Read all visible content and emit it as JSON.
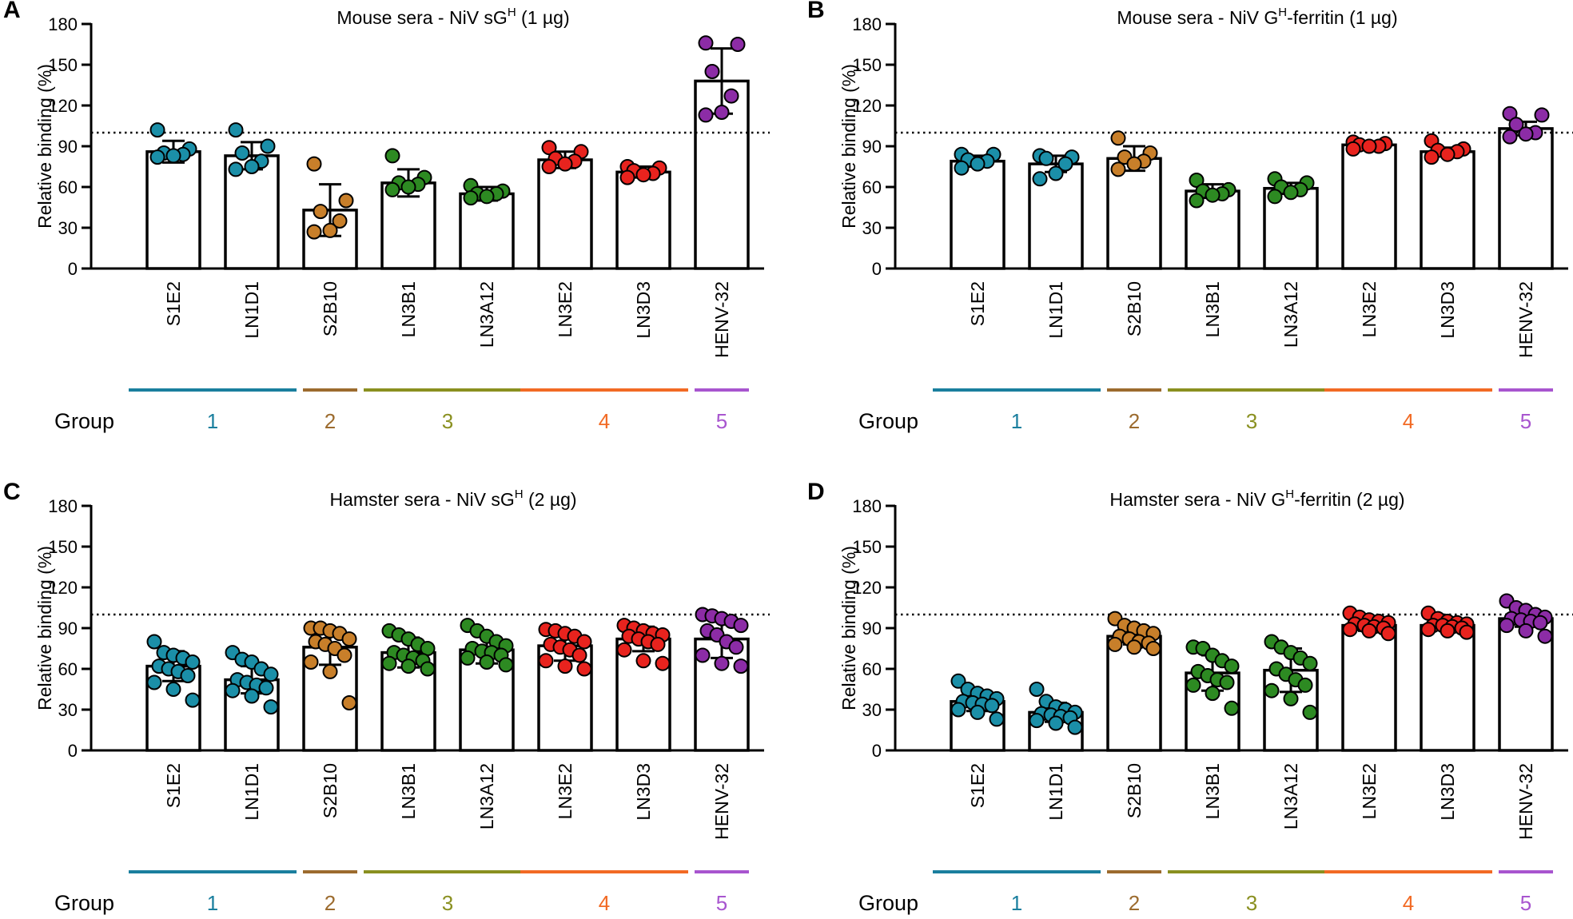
{
  "chart_data": [
    {
      "type": "bar",
      "panel_label": "A",
      "title": "Mouse sera - NiV sG",
      "title_sup": "H",
      "title_after": " (1 µg)",
      "ylabel": "Relative binding (%)",
      "ylim": [
        0,
        180
      ],
      "yticks": [
        "0",
        "30",
        "60",
        "90",
        "120",
        "150",
        "180"
      ],
      "reference_line": 100,
      "categories": [
        "S1E2",
        "LN1D1",
        "S2B10",
        "LN3B1",
        "LN3A12",
        "LN3E2",
        "LN3D3",
        "HENV-32"
      ],
      "values": [
        86,
        83,
        43,
        63,
        55,
        80,
        71,
        138
      ],
      "errors": [
        8,
        10,
        19,
        10,
        5,
        6,
        4,
        24
      ],
      "points": [
        [
          102,
          88,
          85,
          84,
          83,
          82
        ],
        [
          102,
          90,
          85,
          79,
          75,
          73
        ],
        [
          77,
          50,
          42,
          35,
          28,
          27
        ],
        [
          83,
          67,
          63,
          62,
          60,
          58
        ],
        [
          61,
          57,
          55,
          55,
          53,
          52
        ],
        [
          89,
          86,
          81,
          79,
          77,
          75
        ],
        [
          75,
          74,
          72,
          70,
          69,
          67
        ],
        [
          166,
          165,
          145,
          127,
          115,
          113
        ]
      ],
      "group_label": "Group",
      "groups": [
        {
          "label": "1",
          "color": "#1a7f9e",
          "start": 0,
          "end": 1
        },
        {
          "label": "2",
          "color": "#9c6b2e",
          "start": 2,
          "end": 2
        },
        {
          "label": "3",
          "color": "#8a9020",
          "start": 3,
          "end": 4
        },
        {
          "label": "4",
          "color": "#f26a24",
          "start": 5,
          "end": 6
        },
        {
          "label": "5",
          "color": "#a855cf",
          "start": 7,
          "end": 7
        }
      ],
      "point_colors": [
        "#1b8fa8",
        "#1b8fa8",
        "#c87f2a",
        "#2d8a22",
        "#2d8a22",
        "#e8231e",
        "#e8231e",
        "#8c2ca6"
      ]
    },
    {
      "type": "bar",
      "panel_label": "B",
      "title": "Mouse sera - NiV G",
      "title_sup": "H",
      "title_after": "-ferritin (1 µg)",
      "ylabel": "Relative binding (%)",
      "ylim": [
        0,
        180
      ],
      "yticks": [
        "0",
        "30",
        "60",
        "90",
        "120",
        "150",
        "180"
      ],
      "reference_line": 100,
      "categories": [
        "S1E2",
        "LN1D1",
        "S2B10",
        "LN3B1",
        "LN3A12",
        "LN3E2",
        "LN3D3",
        "HENV-32"
      ],
      "values": [
        79,
        77,
        81,
        57,
        59,
        91,
        86,
        103
      ],
      "errors": [
        4,
        6,
        9,
        5,
        4,
        2,
        3,
        5
      ],
      "points": [
        [
          84,
          84,
          80,
          79,
          77,
          74
        ],
        [
          83,
          82,
          81,
          77,
          70,
          66
        ],
        [
          96,
          85,
          82,
          79,
          77,
          73
        ],
        [
          65,
          58,
          57,
          55,
          54,
          50
        ],
        [
          66,
          63,
          60,
          58,
          56,
          53
        ],
        [
          93,
          92,
          91,
          90,
          90,
          88
        ],
        [
          94,
          88,
          87,
          86,
          84,
          82
        ],
        [
          114,
          113,
          106,
          100,
          99,
          97
        ]
      ],
      "group_label": "Group",
      "groups": [
        {
          "label": "1",
          "color": "#1a7f9e",
          "start": 0,
          "end": 1
        },
        {
          "label": "2",
          "color": "#9c6b2e",
          "start": 2,
          "end": 2
        },
        {
          "label": "3",
          "color": "#8a9020",
          "start": 3,
          "end": 4
        },
        {
          "label": "4",
          "color": "#f26a24",
          "start": 5,
          "end": 6
        },
        {
          "label": "5",
          "color": "#a855cf",
          "start": 7,
          "end": 7
        }
      ],
      "point_colors": [
        "#1b8fa8",
        "#1b8fa8",
        "#c87f2a",
        "#2d8a22",
        "#2d8a22",
        "#e8231e",
        "#e8231e",
        "#8c2ca6"
      ]
    },
    {
      "type": "bar",
      "panel_label": "C",
      "title": "Hamster sera - NiV sG",
      "title_sup": "H",
      "title_after": " (2 µg)",
      "ylabel": "Relative binding (%)",
      "ylim": [
        0,
        180
      ],
      "yticks": [
        "0",
        "30",
        "60",
        "90",
        "120",
        "150",
        "180"
      ],
      "reference_line": 100,
      "categories": [
        "S1E2",
        "LN1D1",
        "S2B10",
        "LN3B1",
        "LN3A12",
        "LN3E2",
        "LN3D3",
        "HENV-32"
      ],
      "values": [
        62,
        52,
        76,
        72,
        74,
        77,
        82,
        82
      ],
      "errors": [
        11,
        10,
        13,
        11,
        10,
        11,
        9,
        14
      ],
      "points": [
        [
          80,
          72,
          70,
          68,
          65,
          62,
          60,
          58,
          55,
          50,
          45,
          37
        ],
        [
          72,
          67,
          65,
          60,
          56,
          52,
          50,
          48,
          46,
          44,
          40,
          32
        ],
        [
          90,
          90,
          88,
          86,
          82,
          80,
          78,
          75,
          70,
          65,
          58,
          35
        ],
        [
          88,
          85,
          82,
          78,
          75,
          72,
          70,
          68,
          66,
          64,
          62,
          60
        ],
        [
          92,
          88,
          84,
          80,
          77,
          75,
          73,
          72,
          70,
          68,
          65,
          63
        ],
        [
          89,
          88,
          86,
          84,
          80,
          78,
          76,
          74,
          70,
          66,
          62,
          60
        ],
        [
          92,
          90,
          88,
          86,
          85,
          84,
          82,
          80,
          78,
          74,
          66,
          64
        ],
        [
          100,
          99,
          97,
          95,
          92,
          88,
          85,
          80,
          76,
          70,
          64,
          62
        ]
      ],
      "group_label": "Group",
      "groups": [
        {
          "label": "1",
          "color": "#1a7f9e",
          "start": 0,
          "end": 1
        },
        {
          "label": "2",
          "color": "#9c6b2e",
          "start": 2,
          "end": 2
        },
        {
          "label": "3",
          "color": "#8a9020",
          "start": 3,
          "end": 4
        },
        {
          "label": "4",
          "color": "#f26a24",
          "start": 5,
          "end": 6
        },
        {
          "label": "5",
          "color": "#a855cf",
          "start": 7,
          "end": 7
        }
      ],
      "point_colors": [
        "#1b8fa8",
        "#1b8fa8",
        "#c87f2a",
        "#2d8a22",
        "#2d8a22",
        "#e8231e",
        "#e8231e",
        "#8c2ca6"
      ]
    },
    {
      "type": "bar",
      "panel_label": "D",
      "title": "Hamster sera - NiV G",
      "title_sup": "H",
      "title_after": "-ferritin (2 µg)",
      "ylabel": "Relative binding (%)",
      "ylim": [
        0,
        180
      ],
      "yticks": [
        "0",
        "30",
        "60",
        "90",
        "120",
        "150",
        "180"
      ],
      "reference_line": 100,
      "categories": [
        "S1E2",
        "LN1D1",
        "S2B10",
        "LN3B1",
        "LN3A12",
        "LN3E2",
        "LN3D3",
        "HENV-32"
      ],
      "values": [
        36,
        28,
        84,
        57,
        59,
        92,
        92,
        97
      ],
      "errors": [
        7,
        7,
        6,
        13,
        16,
        4,
        3,
        6
      ],
      "points": [
        [
          51,
          45,
          42,
          40,
          38,
          36,
          35,
          34,
          33,
          30,
          28,
          23
        ],
        [
          45,
          36,
          32,
          30,
          28,
          27,
          26,
          25,
          24,
          22,
          20,
          17
        ],
        [
          97,
          92,
          90,
          88,
          86,
          84,
          82,
          80,
          79,
          78,
          76,
          75
        ],
        [
          76,
          75,
          70,
          66,
          62,
          58,
          55,
          52,
          50,
          48,
          42,
          31
        ],
        [
          80,
          76,
          72,
          68,
          64,
          60,
          56,
          52,
          48,
          44,
          38,
          28
        ],
        [
          101,
          98,
          96,
          95,
          94,
          93,
          92,
          91,
          90,
          89,
          88,
          86
        ],
        [
          101,
          97,
          95,
          94,
          93,
          92,
          92,
          91,
          90,
          89,
          88,
          87
        ],
        [
          110,
          105,
          103,
          100,
          98,
          97,
          96,
          95,
          94,
          92,
          88,
          84
        ]
      ],
      "group_label": "Group",
      "groups": [
        {
          "label": "1",
          "color": "#1a7f9e",
          "start": 0,
          "end": 1
        },
        {
          "label": "2",
          "color": "#9c6b2e",
          "start": 2,
          "end": 2
        },
        {
          "label": "3",
          "color": "#8a9020",
          "start": 3,
          "end": 4
        },
        {
          "label": "4",
          "color": "#f26a24",
          "start": 5,
          "end": 6
        },
        {
          "label": "5",
          "color": "#a855cf",
          "start": 7,
          "end": 7
        }
      ],
      "point_colors": [
        "#1b8fa8",
        "#1b8fa8",
        "#c87f2a",
        "#2d8a22",
        "#2d8a22",
        "#e8231e",
        "#e8231e",
        "#8c2ca6"
      ]
    }
  ]
}
